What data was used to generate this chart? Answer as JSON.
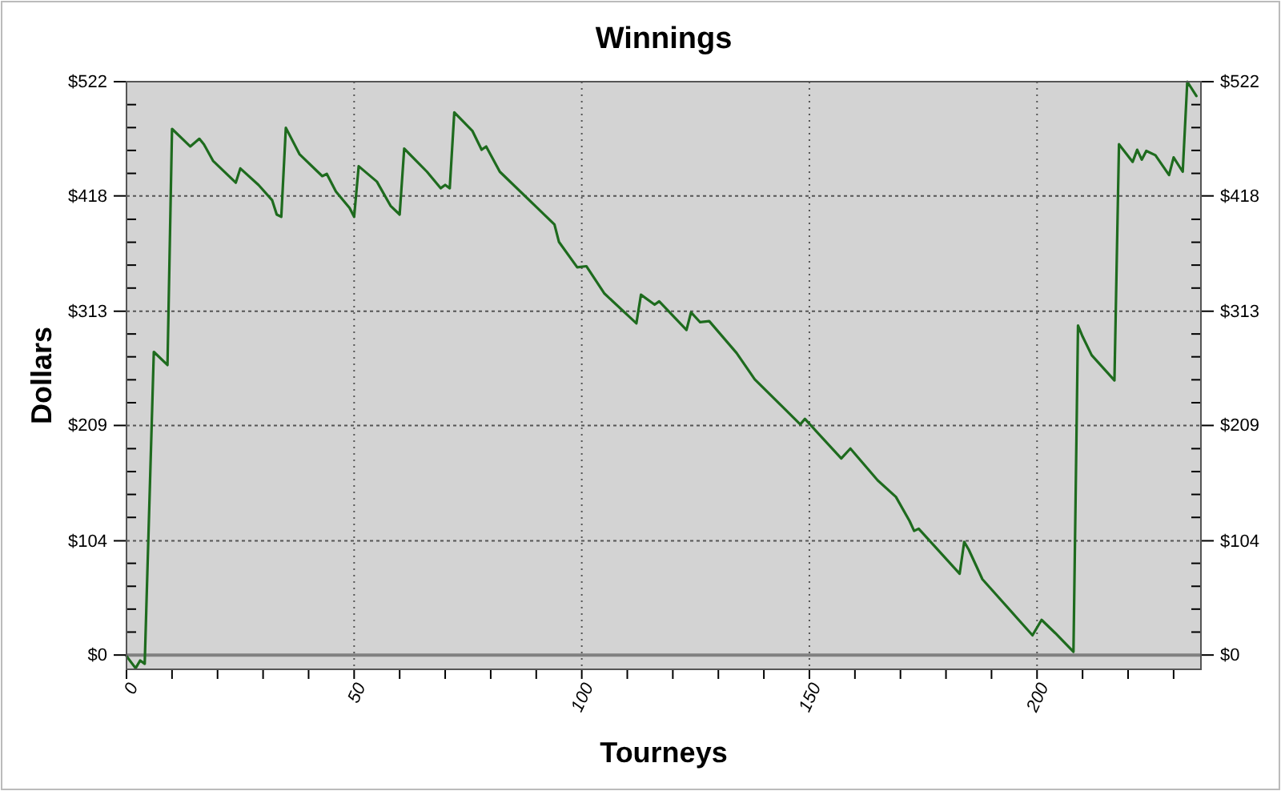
{
  "chart_data": {
    "type": "line",
    "title": "Winnings",
    "xlabel": "Tourneys",
    "ylabel": "Dollars",
    "x": [
      0,
      2,
      3,
      4,
      6,
      9,
      10,
      14,
      16,
      17,
      19,
      24,
      25,
      29,
      32,
      33,
      34,
      35,
      38,
      43,
      44,
      46,
      49,
      50,
      51,
      55,
      58,
      60,
      61,
      66,
      69,
      70,
      71,
      72,
      76,
      78,
      79,
      82,
      94,
      95,
      99,
      101,
      105,
      112,
      113,
      116,
      117,
      123,
      124,
      126,
      128,
      134,
      138,
      148,
      149,
      157,
      159,
      165,
      169,
      172,
      173,
      174,
      183,
      184,
      185,
      188,
      199,
      201,
      204,
      208,
      209,
      210,
      212,
      217,
      218,
      221,
      222,
      223,
      224,
      226,
      229,
      230,
      232,
      233,
      235
    ],
    "series": [
      {
        "color": "#1e6b1e",
        "values": [
          -1,
          -12,
          -5,
          -8,
          276,
          264,
          479,
          463,
          470,
          465,
          450,
          430,
          443,
          428,
          414,
          401,
          399,
          480,
          456,
          436,
          438,
          422,
          407,
          399,
          445,
          431,
          409,
          401,
          461,
          440,
          425,
          428,
          425,
          494,
          477,
          460,
          463,
          440,
          392,
          376,
          353,
          354,
          329,
          302,
          328,
          319,
          322,
          296,
          312,
          303,
          304,
          275,
          251,
          210,
          215,
          179,
          188,
          159,
          144,
          122,
          113,
          115,
          74,
          103,
          96,
          69,
          18,
          32,
          20,
          3,
          300,
          290,
          273,
          250,
          465,
          449,
          460,
          451,
          459,
          455,
          437,
          453,
          440,
          522,
          509
        ]
      }
    ],
    "xlim": [
      0,
      236
    ],
    "ylim": [
      -13,
      522
    ],
    "y2lim": [
      -13,
      522
    ],
    "xticks": [
      0,
      {
        "value": 10,
        "label": null
      },
      {
        "value": 20,
        "label": null
      },
      {
        "value": 30,
        "label": null
      },
      {
        "value": 40,
        "label": null
      },
      50,
      {
        "value": 60,
        "label": null
      },
      {
        "value": 70,
        "label": null
      },
      {
        "value": 80,
        "label": null
      },
      {
        "value": 90,
        "label": null
      },
      100,
      {
        "value": 110,
        "label": null
      },
      {
        "value": 120,
        "label": null
      },
      {
        "value": 130,
        "label": null
      },
      {
        "value": 140,
        "label": null
      },
      150,
      {
        "value": 160,
        "label": null
      },
      {
        "value": 170,
        "label": null
      },
      {
        "value": 180,
        "label": null
      },
      {
        "value": 190,
        "label": null
      },
      200,
      {
        "value": 210,
        "label": null
      },
      {
        "value": 220,
        "label": null
      },
      {
        "value": 230,
        "label": null
      }
    ],
    "yticks": [
      {
        "value": 0,
        "label": "$0"
      },
      {
        "value": 20.9,
        "label": null
      },
      {
        "value": 41.8,
        "label": null
      },
      {
        "value": 62.6,
        "label": null
      },
      {
        "value": 83.5,
        "label": null
      },
      {
        "value": 104,
        "label": "$104"
      },
      {
        "value": 125.3,
        "label": null
      },
      {
        "value": 146.2,
        "label": null
      },
      {
        "value": 167,
        "label": null
      },
      {
        "value": 187.9,
        "label": null
      },
      {
        "value": 209,
        "label": "$209"
      },
      {
        "value": 229.7,
        "label": null
      },
      {
        "value": 250.6,
        "label": null
      },
      {
        "value": 271.5,
        "label": null
      },
      {
        "value": 292.3,
        "label": null
      },
      {
        "value": 313,
        "label": "$313"
      },
      {
        "value": 334.1,
        "label": null
      },
      {
        "value": 355,
        "label": null
      },
      {
        "value": 375.8,
        "label": null
      },
      {
        "value": 396.7,
        "label": null
      },
      {
        "value": 418,
        "label": "$418"
      },
      {
        "value": 438.5,
        "label": null
      },
      {
        "value": 459.4,
        "label": null
      },
      {
        "value": 480.2,
        "label": null
      },
      {
        "value": 501.1,
        "label": null
      },
      {
        "value": 522,
        "label": "$522"
      }
    ],
    "y2ticks": [
      {
        "value": 0,
        "label": "$0"
      },
      {
        "value": 20.9,
        "label": null
      },
      {
        "value": 41.8,
        "label": null
      },
      {
        "value": 62.6,
        "label": null
      },
      {
        "value": 83.5,
        "label": null
      },
      {
        "value": 104,
        "label": "$104"
      },
      {
        "value": 125.3,
        "label": null
      },
      {
        "value": 146.2,
        "label": null
      },
      {
        "value": 167,
        "label": null
      },
      {
        "value": 187.9,
        "label": null
      },
      {
        "value": 209,
        "label": "$209"
      },
      {
        "value": 229.7,
        "label": null
      },
      {
        "value": 250.6,
        "label": null
      },
      {
        "value": 271.5,
        "label": null
      },
      {
        "value": 292.3,
        "label": null
      },
      {
        "value": 313,
        "label": "$313"
      },
      {
        "value": 334.1,
        "label": null
      },
      {
        "value": 355,
        "label": null
      },
      {
        "value": 375.8,
        "label": null
      },
      {
        "value": 396.7,
        "label": null
      },
      {
        "value": 418,
        "label": "$418"
      },
      {
        "value": 438.5,
        "label": null
      },
      {
        "value": 459.4,
        "label": null
      },
      {
        "value": 480.2,
        "label": null
      },
      {
        "value": 501.1,
        "label": null
      },
      {
        "value": 522,
        "label": "$522"
      }
    ],
    "grid": true,
    "line_style": "solid",
    "ref_lines": [
      {
        "axis": "y",
        "value": 0,
        "color": "#808080"
      }
    ]
  }
}
